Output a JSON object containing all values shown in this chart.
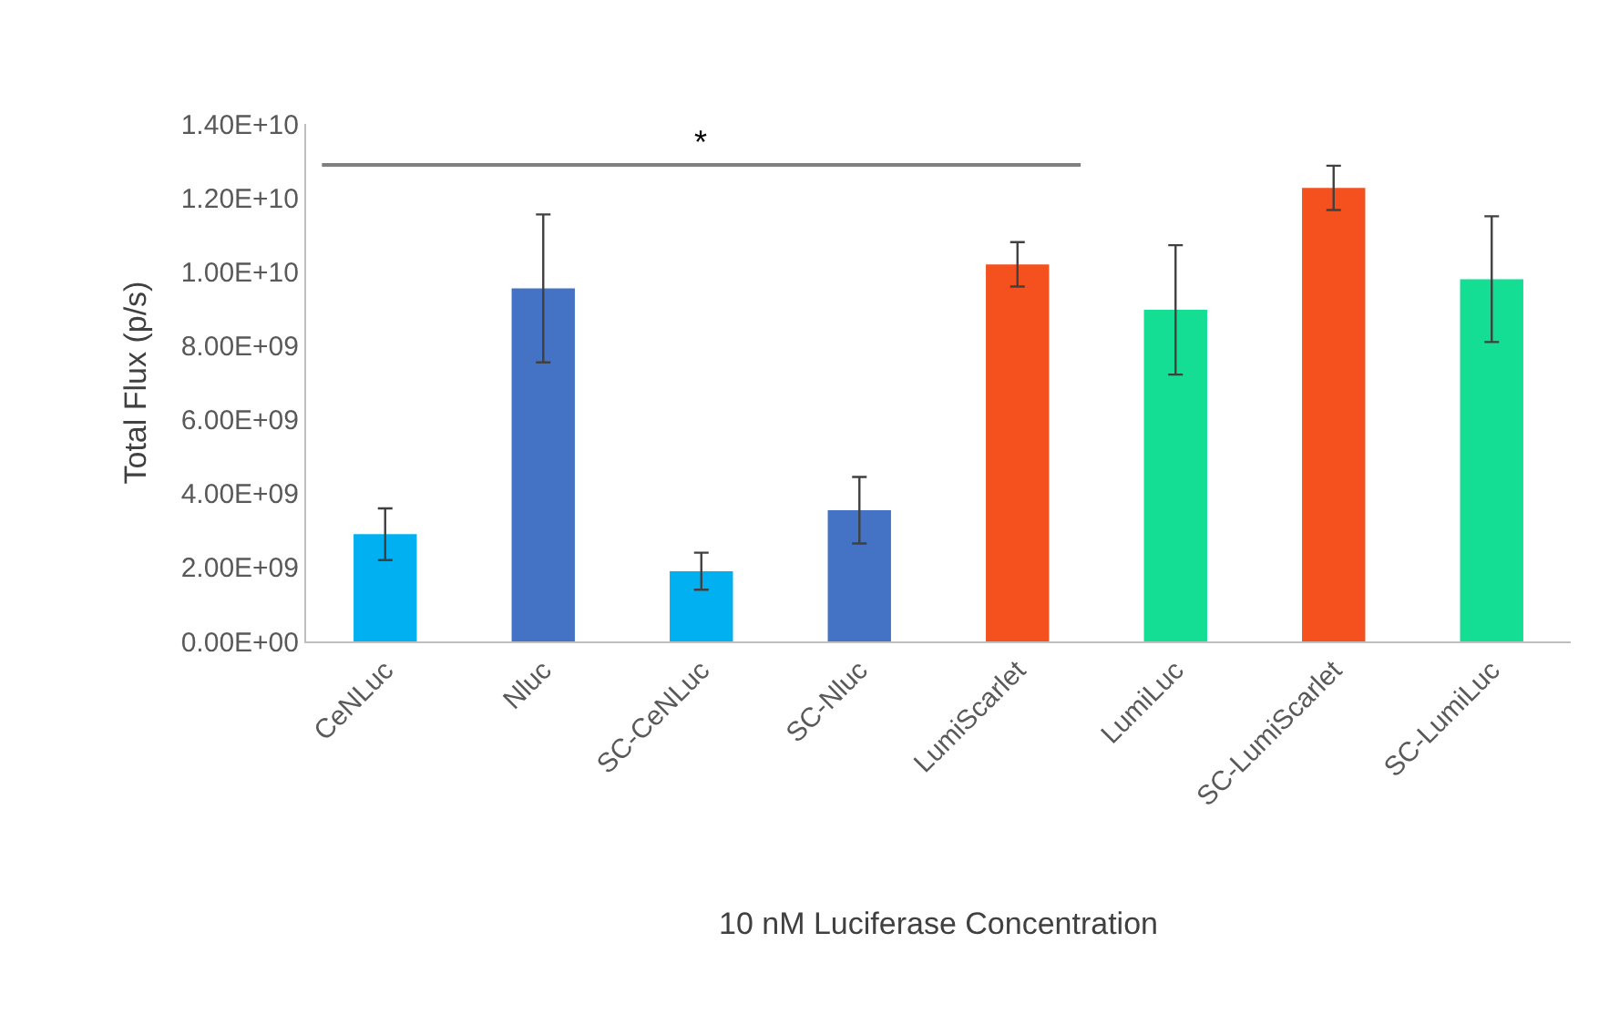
{
  "chart_data": {
    "type": "bar",
    "xlabel": "10 nM Luciferase Concentration",
    "ylabel": "Total Flux (p/s)",
    "categories": [
      "CeNLuc",
      "Nluc",
      "SC-CeNLuc",
      "SC-Nluc",
      "LumiScarlet",
      "LumiLuc",
      "SC-LumiScarlet",
      "SC-LumiLuc"
    ],
    "values": [
      2900000000.0,
      9550000000.0,
      1900000000.0,
      3550000000.0,
      10200000000.0,
      8970000000.0,
      12270000000.0,
      9800000000.0
    ],
    "colors": [
      "#00b0f0",
      "#4472c4",
      "#00b0f0",
      "#4472c4",
      "#f4511e",
      "#13de93",
      "#f4511e",
      "#13de93"
    ],
    "errors": [
      700000000.0,
      2000000000.0,
      500000000.0,
      900000000.0,
      600000000.0,
      1750000000.0,
      600000000.0,
      1700000000.0
    ],
    "ylim": [
      0,
      14000000000.0
    ],
    "yticks": [
      {
        "value": 0,
        "label": "0.00E+00"
      },
      {
        "value": 2000000000.0,
        "label": "2.00E+09"
      },
      {
        "value": 4000000000.0,
        "label": "4.00E+09"
      },
      {
        "value": 6000000000.0,
        "label": "6.00E+09"
      },
      {
        "value": 8000000000.0,
        "label": "8.00E+09"
      },
      {
        "value": 10000000000.0,
        "label": "1.00E+10"
      },
      {
        "value": 12000000000.0,
        "label": "1.20E+10"
      },
      {
        "value": 14000000000.0,
        "label": "1.40E+10"
      }
    ],
    "grid": false,
    "annotations": [
      "*"
    ]
  }
}
